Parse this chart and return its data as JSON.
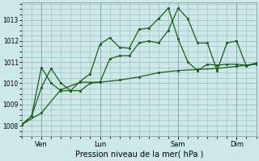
{
  "background_color": "#cce8e8",
  "plot_bg_color": "#cce8e8",
  "grid_color": "#99bbbb",
  "line_color": "#1a5c1a",
  "marker_color": "#1a5c1a",
  "xlabel": "Pression niveau de la mer( hPa )",
  "ylim": [
    1007.5,
    1013.8
  ],
  "yticks": [
    1008,
    1009,
    1010,
    1011,
    1012,
    1013
  ],
  "xlim": [
    0,
    12
  ],
  "day_labels": [
    "Ven",
    "Lun",
    "Sam",
    "Dim"
  ],
  "day_positions": [
    1,
    4,
    8,
    11
  ],
  "series1_x": [
    0,
    0.5,
    1,
    1.5,
    2,
    2.5,
    3,
    3.5,
    4,
    4.5,
    5,
    5.5,
    6,
    6.5,
    7,
    7.5,
    8,
    8.5,
    9,
    9.5,
    10,
    10.5,
    11,
    11.5,
    12
  ],
  "series1": [
    1008.05,
    1008.45,
    1009.8,
    1010.7,
    1010.0,
    1009.65,
    1009.65,
    1010.0,
    1010.05,
    1011.15,
    1011.3,
    1011.3,
    1011.9,
    1012.0,
    1011.9,
    1012.5,
    1013.55,
    1013.05,
    1011.9,
    1011.9,
    1010.6,
    1011.9,
    1012.0,
    1010.8,
    1010.95
  ],
  "series2_x": [
    0,
    0.5,
    1,
    1.5,
    2,
    2.5,
    3,
    3.5,
    4,
    4.5,
    5,
    5.5,
    6,
    6.5,
    7,
    7.5,
    8,
    8.5,
    9,
    9.5,
    10,
    10.5,
    11,
    11.5,
    12
  ],
  "series2": [
    1008.05,
    1008.45,
    1010.75,
    1010.0,
    1009.65,
    1009.65,
    1010.1,
    1010.45,
    1011.85,
    1012.15,
    1011.7,
    1011.65,
    1012.55,
    1012.6,
    1013.05,
    1013.55,
    1012.1,
    1011.0,
    1010.6,
    1010.9,
    1010.85,
    1010.9,
    1010.9,
    1010.85,
    1010.95
  ],
  "series3_x": [
    0,
    1,
    2,
    3,
    4,
    5,
    6,
    7,
    8,
    9,
    10,
    11,
    12
  ],
  "series3": [
    1008.05,
    1008.6,
    1009.7,
    1010.05,
    1010.05,
    1010.15,
    1010.3,
    1010.5,
    1010.6,
    1010.65,
    1010.7,
    1010.8,
    1010.9
  ]
}
